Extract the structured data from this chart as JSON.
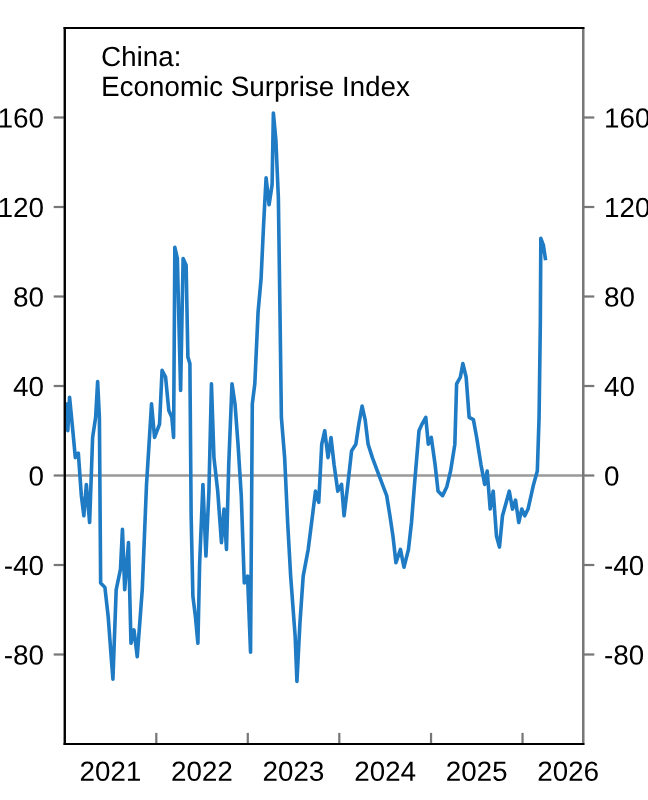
{
  "chart_data": {
    "type": "line",
    "title": "China:\nEconomic Surprise Index",
    "x": [
      "2021-01-08",
      "2021-01-13",
      "2021-01-20",
      "2021-02-02",
      "2021-02-12",
      "2021-02-24",
      "2021-03-08",
      "2021-03-18",
      "2021-03-28",
      "2021-04-10",
      "2021-04-22",
      "2021-05-04",
      "2021-05-12",
      "2021-05-19",
      "2021-05-24",
      "2021-06-10",
      "2021-06-23",
      "2021-07-05",
      "2021-07-12",
      "2021-07-25",
      "2021-08-11",
      "2021-08-19",
      "2021-08-28",
      "2021-09-12",
      "2021-09-22",
      "2021-10-04",
      "2021-10-17",
      "2021-11-06",
      "2021-11-23",
      "2021-12-13",
      "2021-12-25",
      "2022-01-14",
      "2022-01-24",
      "2022-02-07",
      "2022-02-20",
      "2022-03-04",
      "2022-03-11",
      "2022-03-16",
      "2022-03-26",
      "2022-04-08",
      "2022-04-18",
      "2022-04-30",
      "2022-05-07",
      "2022-05-15",
      "2022-05-20",
      "2022-05-27",
      "2022-06-06",
      "2022-06-16",
      "2022-06-23",
      "2022-07-06",
      "2022-07-18",
      "2022-07-30",
      "2022-08-09",
      "2022-08-19",
      "2022-09-03",
      "2022-09-18",
      "2022-09-28",
      "2022-10-08",
      "2022-10-17",
      "2022-10-30",
      "2022-11-11",
      "2022-11-23",
      "2022-12-06",
      "2022-12-18",
      "2022-12-31",
      "2023-01-12",
      "2023-01-19",
      "2023-01-29",
      "2023-02-11",
      "2023-02-23",
      "2023-03-05",
      "2023-03-15",
      "2023-03-27",
      "2023-04-08",
      "2023-04-13",
      "2023-04-23",
      "2023-05-03",
      "2023-05-10",
      "2023-05-15",
      "2023-05-28",
      "2023-06-09",
      "2023-06-21",
      "2023-07-09",
      "2023-07-16",
      "2023-07-28",
      "2023-08-10",
      "2023-08-30",
      "2023-09-16",
      "2023-09-28",
      "2023-10-11",
      "2023-10-23",
      "2023-11-04",
      "2023-11-17",
      "2023-11-29",
      "2023-12-11",
      "2023-12-26",
      "2024-01-10",
      "2024-01-20",
      "2024-02-04",
      "2024-02-19",
      "2024-03-07",
      "2024-03-19",
      "2024-04-01",
      "2024-04-13",
      "2024-04-25",
      "2024-05-12",
      "2024-06-01",
      "2024-06-21",
      "2024-07-08",
      "2024-07-21",
      "2024-08-02",
      "2024-08-14",
      "2024-09-01",
      "2024-09-15",
      "2024-10-03",
      "2024-10-15",
      "2024-10-27",
      "2024-11-14",
      "2024-11-26",
      "2024-12-11",
      "2024-12-21",
      "2025-01-02",
      "2025-01-17",
      "2025-01-29",
      "2025-02-16",
      "2025-03-05",
      "2025-03-20",
      "2025-04-06",
      "2025-04-13",
      "2025-04-28",
      "2025-05-08",
      "2025-05-21",
      "2025-06-02",
      "2025-06-19",
      "2025-07-02",
      "2025-07-19",
      "2025-08-03",
      "2025-08-13",
      "2025-08-25",
      "2025-09-06",
      "2025-09-19",
      "2025-10-01",
      "2025-10-13",
      "2025-10-28",
      "2025-11-09",
      "2025-11-22",
      "2025-12-04",
      "2025-12-17",
      "2025-12-29",
      "2026-01-10",
      "2026-01-23",
      "2026-02-04",
      "2026-02-14",
      "2026-03-01",
      "2026-03-08",
      "2026-03-13",
      "2026-03-15",
      "2026-03-25",
      "2026-04-02"
    ],
    "series": [
      {
        "color": "#1f7bc4",
        "values": [
          32,
          20,
          35,
          20,
          8,
          10,
          -9,
          -18,
          -4,
          -21,
          17,
          26,
          42,
          26,
          -48,
          -50,
          -63,
          -81,
          -91,
          -51,
          -42,
          -24,
          -51,
          -30,
          -75,
          -69,
          -81,
          -51,
          -4,
          32,
          17,
          23,
          47,
          44,
          29,
          26,
          17,
          102,
          97,
          38,
          97,
          94,
          53,
          50,
          -18,
          -54,
          -63,
          -75,
          -39,
          -4,
          -36,
          -7,
          41,
          8,
          -7,
          -30,
          -15,
          -33,
          5,
          41,
          32,
          14,
          -9,
          -48,
          -45,
          -79,
          32,
          41,
          73,
          88,
          112,
          133,
          121,
          130,
          162,
          150,
          124,
          68,
          26,
          8,
          -21,
          -45,
          -72,
          -92,
          -66,
          -45,
          -33,
          -18,
          -7,
          -12,
          14,
          20,
          8,
          17,
          5,
          -7,
          -4,
          -18,
          -4,
          11,
          14,
          23,
          31,
          25,
          14,
          8,
          2,
          -4,
          -9,
          -18,
          -27,
          -39,
          -33,
          -41,
          -33,
          -21,
          -4,
          20,
          23,
          26,
          14,
          17,
          5,
          -7,
          -9,
          -5,
          2,
          14,
          41,
          44,
          50,
          44,
          26,
          25,
          17,
          5,
          -4,
          2,
          -15,
          -7,
          -27,
          -32,
          -18,
          -12,
          -7,
          -15,
          -11,
          -21,
          -15,
          -18,
          -15,
          -9,
          -4,
          2,
          26,
          68,
          106,
          103,
          97
        ]
      }
    ],
    "xlim": [
      "2021-01-01",
      "2026-08-31"
    ],
    "xticks": [
      {
        "value": "2021-07-02",
        "label": "2021"
      },
      {
        "value": "2022-01-01",
        "label": null
      },
      {
        "value": "2022-07-02",
        "label": "2022"
      },
      {
        "value": "2023-01-01",
        "label": null
      },
      {
        "value": "2023-07-02",
        "label": "2023"
      },
      {
        "value": "2024-01-01",
        "label": null
      },
      {
        "value": "2024-07-02",
        "label": "2024"
      },
      {
        "value": "2025-01-01",
        "label": null
      },
      {
        "value": "2025-07-02",
        "label": "2025"
      },
      {
        "value": "2026-01-01",
        "label": null
      },
      {
        "value": "2026-07-02",
        "label": "2026"
      }
    ],
    "ylim": [
      -120,
      200
    ],
    "yticks": [
      -80,
      -40,
      0,
      40,
      80,
      120,
      160
    ],
    "y2lim": [
      -120,
      200
    ],
    "y2ticks": [
      -80,
      -40,
      0,
      40,
      80,
      120,
      160
    ],
    "ref_lines": [
      {
        "axis": "y",
        "value": 0,
        "color": "#999999"
      }
    ],
    "grid": false,
    "legend": false,
    "marker": "none",
    "line_style": "solid"
  }
}
